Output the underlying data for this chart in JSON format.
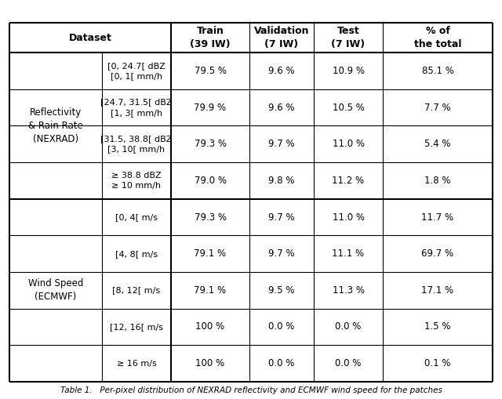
{
  "title_caption": "Table 1.   Per-pixel distribution of NEXRAD reflectivity and ECMWF wind speed for the patches",
  "col_headers": [
    "Dataset",
    "Train\n(39 IW)",
    "Validation\n(7 IW)",
    "Test\n(7 IW)",
    "% of\nthe total"
  ],
  "group1_label": "Reflectivity\n& Rain Rate\n(NEXRAD)",
  "group1_rows": [
    {
      "sub": "[0, 24.7[ dBZ\n[0, 1[ mm/h",
      "train": "79.5 %",
      "val": "9.6 %",
      "test": "10.9 %",
      "pct": "85.1 %"
    },
    {
      "sub": "[24.7, 31.5[ dBZ\n[1, 3[ mm/h",
      "train": "79.9 %",
      "val": "9.6 %",
      "test": "10.5 %",
      "pct": "7.7 %"
    },
    {
      "sub": "[31.5, 38.8[ dBZ\n[3, 10[ mm/h",
      "train": "79.3 %",
      "val": "9.7 %",
      "test": "11.0 %",
      "pct": "5.4 %"
    },
    {
      "sub": "≥ 38.8 dBZ\n≥ 10 mm/h",
      "train": "79.0 %",
      "val": "9.8 %",
      "test": "11.2 %",
      "pct": "1.8 %"
    }
  ],
  "group2_label": "Wind Speed\n(ECMWF)",
  "group2_rows": [
    {
      "sub": "[0, 4[ m/s",
      "train": "79.3 %",
      "val": "9.7 %",
      "test": "11.0 %",
      "pct": "11.7 %"
    },
    {
      "sub": "[4, 8[ m/s",
      "train": "79.1 %",
      "val": "9.7 %",
      "test": "11.1 %",
      "pct": "69.7 %"
    },
    {
      "sub": "[8, 12[ m/s",
      "train": "79.1 %",
      "val": "9.5 %",
      "test": "11.3 %",
      "pct": "17.1 %"
    },
    {
      "sub": "[12, 16[ m/s",
      "train": "100 %",
      "val": "0.0 %",
      "test": "0.0 %",
      "pct": "1.5 %"
    },
    {
      "sub": "≥ 16 m/s",
      "train": "100 %",
      "val": "0.0 %",
      "test": "0.0 %",
      "pct": "0.1 %"
    }
  ],
  "bg_color": "#ffffff",
  "header_bg": "#f0f0f0",
  "line_color": "#000000",
  "text_color": "#000000",
  "font_size": 8.5,
  "header_font_size": 9.0
}
